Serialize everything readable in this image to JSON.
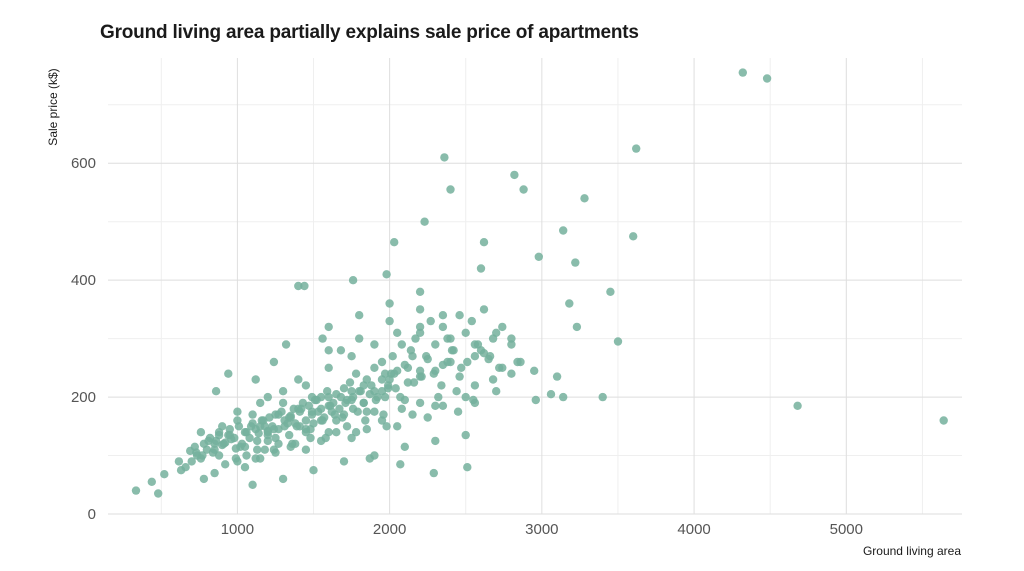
{
  "chart_data": {
    "type": "scatter",
    "title": "Ground living area partially explains sale price of apartments",
    "xlabel": "Ground living area",
    "ylabel": "Sale price (k$)",
    "xlim": [
      150,
      5760
    ],
    "ylim": [
      0,
      780
    ],
    "x_ticks": [
      1000,
      2000,
      3000,
      4000,
      5000
    ],
    "y_ticks": [
      0,
      200,
      400,
      600
    ],
    "grid": true,
    "legend": "none",
    "point_color": "#74b09c",
    "x": [
      334,
      438,
      480,
      520,
      616,
      630,
      660,
      690,
      720,
      735,
      760,
      780,
      800,
      820,
      840,
      860,
      880,
      900,
      920,
      940,
      960,
      990,
      1010,
      1030,
      1050,
      1080,
      1100,
      1120,
      1140,
      1160,
      1180,
      1200,
      1210,
      1230,
      1250,
      1270,
      1290,
      1310,
      1330,
      1350,
      1370,
      1390,
      1410,
      1430,
      1450,
      1470,
      1490,
      1510,
      1530,
      1550,
      1570,
      1590,
      1610,
      1630,
      1650,
      1670,
      1700,
      1720,
      1740,
      1760,
      1780,
      1810,
      1830,
      1850,
      1880,
      1900,
      1920,
      1950,
      1970,
      1990,
      2020,
      2050,
      2080,
      2100,
      2140,
      2170,
      2200,
      2240,
      2270,
      2300,
      2350,
      2380,
      2420,
      2460,
      2500,
      2540,
      2580,
      2620,
      2660,
      2700,
      2740,
      2800,
      2860,
      700,
      730,
      770,
      810,
      850,
      880,
      910,
      950,
      980,
      1020,
      1060,
      1090,
      1130,
      1170,
      1200,
      1240,
      1270,
      1310,
      1340,
      1380,
      1420,
      1450,
      1490,
      1520,
      1560,
      1600,
      1640,
      1680,
      1710,
      1750,
      1790,
      1830,
      1870,
      1910,
      1950,
      1990,
      2030,
      2070,
      2120,
      2160,
      2210,
      2250,
      2300,
      2350,
      2410,
      2460,
      2510,
      2560,
      2620,
      2680,
      2740,
      780,
      850,
      920,
      990,
      1060,
      1130,
      1200,
      1270,
      1340,
      1410,
      1480,
      1550,
      1620,
      1690,
      1760,
      1830,
      1900,
      1970,
      2040,
      2120,
      2200,
      2290,
      2380,
      2470,
      2560,
      2650,
      900,
      1000,
      1100,
      1200,
      1300,
      1400,
      1500,
      1600,
      1700,
      1800,
      1900,
      2000,
      2100,
      2200,
      2300,
      2400,
      2500,
      2600,
      2700,
      2800,
      1050,
      1150,
      1250,
      1350,
      1450,
      1550,
      1650,
      1750,
      1850,
      1950,
      2050,
      2150,
      2250,
      2350,
      2450,
      2550,
      1100,
      1300,
      1500,
      1700,
      1900,
      2100,
      2300,
      2500,
      1200,
      1400,
      1600,
      1800,
      2000,
      2200,
      1000,
      1150,
      1300,
      1450,
      1600,
      1750,
      1900,
      2050,
      2200,
      2350,
      850,
      950,
      1050,
      1150,
      1250,
      1350,
      1450,
      1550,
      1650,
      1750,
      1850,
      1950,
      760,
      880,
      1000,
      1120,
      1240,
      1360,
      1480,
      1600,
      1720,
      1840,
      1960,
      2080,
      2200,
      2320,
      2440,
      2560,
      2680,
      2800,
      1400,
      1600,
      1800,
      2000,
      2200,
      2400,
      2600,
      2840,
      2950,
      3060,
      3100,
      3140,
      3180,
      3220,
      3280,
      3400,
      3450,
      3500,
      2820,
      2880,
      2980,
      3230,
      3620,
      3600,
      3140,
      2620,
      2400,
      2360,
      2230,
      2030,
      1440,
      1760,
      1980,
      4320,
      4480,
      4680,
      5640,
      2960,
      2560,
      2720,
      2340,
      2010,
      2150,
      1680,
      1560,
      1320,
      1240,
      1120,
      940,
      860,
      1490,
      1870,
      2070,
      2290,
      2510,
      1180,
      1380,
      1580,
      1780,
      1980
    ],
    "y": [
      40,
      55,
      35,
      68,
      90,
      75,
      80,
      108,
      115,
      100,
      95,
      120,
      110,
      130,
      105,
      125,
      140,
      118,
      122,
      135,
      128,
      112,
      150,
      120,
      140,
      130,
      155,
      145,
      138,
      160,
      150,
      142,
      165,
      150,
      170,
      145,
      175,
      160,
      155,
      168,
      180,
      150,
      175,
      190,
      160,
      185,
      170,
      195,
      175,
      200,
      165,
      210,
      185,
      190,
      205,
      180,
      215,
      195,
      225,
      200,
      240,
      210,
      190,
      230,
      220,
      250,
      200,
      260,
      240,
      220,
      270,
      245,
      290,
      255,
      280,
      300,
      310,
      270,
      330,
      290,
      320,
      300,
      280,
      340,
      310,
      330,
      290,
      350,
      270,
      310,
      320,
      300,
      260,
      90,
      105,
      100,
      125,
      110,
      135,
      120,
      145,
      130,
      115,
      140,
      150,
      125,
      160,
      135,
      145,
      170,
      150,
      165,
      155,
      180,
      140,
      175,
      195,
      160,
      185,
      170,
      200,
      190,
      210,
      175,
      220,
      205,
      195,
      230,
      215,
      240,
      200,
      250,
      225,
      235,
      265,
      245,
      255,
      280,
      235,
      260,
      290,
      275,
      300,
      250,
      60,
      70,
      85,
      95,
      100,
      110,
      125,
      120,
      135,
      150,
      145,
      160,
      175,
      165,
      180,
      190,
      210,
      200,
      215,
      225,
      235,
      240,
      260,
      250,
      270,
      265,
      150,
      160,
      170,
      140,
      190,
      180,
      155,
      200,
      170,
      210,
      175,
      230,
      195,
      245,
      185,
      260,
      200,
      280,
      210,
      290,
      80,
      95,
      105,
      115,
      110,
      125,
      140,
      130,
      145,
      160,
      150,
      170,
      165,
      185,
      175,
      195,
      50,
      60,
      75,
      90,
      100,
      115,
      125,
      135,
      200,
      230,
      280,
      300,
      330,
      350,
      175,
      190,
      210,
      220,
      250,
      270,
      290,
      310,
      320,
      340,
      120,
      135,
      115,
      150,
      130,
      165,
      145,
      180,
      160,
      195,
      175,
      210,
      140,
      100,
      90,
      95,
      110,
      120,
      130,
      140,
      150,
      160,
      170,
      180,
      190,
      200,
      210,
      220,
      230,
      240,
      390,
      320,
      340,
      360,
      380,
      300,
      420,
      260,
      245,
      205,
      235,
      485,
      360,
      430,
      540,
      200,
      380,
      295,
      580,
      555,
      440,
      320,
      625,
      475,
      200,
      465,
      555,
      610,
      500,
      465,
      390,
      400,
      410,
      755,
      745,
      185,
      160,
      195,
      190,
      250,
      220,
      240,
      270,
      280,
      300,
      290,
      260,
      230,
      240,
      210,
      200,
      95,
      85,
      70,
      80,
      110,
      120,
      130,
      140,
      150
    ],
    "series_name": ""
  }
}
